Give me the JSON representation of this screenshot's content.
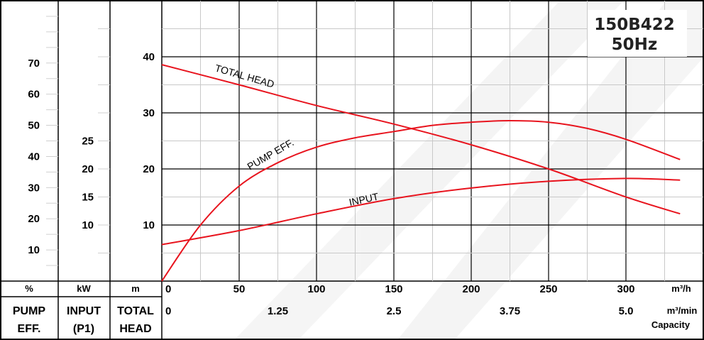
{
  "model": {
    "line1": "150B422",
    "line2": "50Hz"
  },
  "columns": {
    "eff": {
      "unit": "%",
      "label_line1": "PUMP",
      "label_line2": "EFF."
    },
    "input": {
      "unit": "kW",
      "label_line1": "INPUT",
      "label_line2": "(P1)"
    },
    "head": {
      "unit": "m",
      "label_line1": "TOTAL",
      "label_line2": "HEAD"
    }
  },
  "x_units": {
    "m3h": "m³/h",
    "m3min": "m³/min",
    "capacity": "Capacity"
  },
  "chart_data": {
    "type": "line",
    "title": "",
    "x": {
      "label": "Capacity",
      "unit": "m³/h",
      "range": [
        0,
        350
      ],
      "ticks": [
        "0",
        "50",
        "100",
        "150",
        "200",
        "250",
        "300"
      ],
      "secondary_unit": "m³/min",
      "secondary_ticks": [
        {
          "value": 0,
          "label": "0"
        },
        {
          "value": 75,
          "label": "1.25"
        },
        {
          "value": 150,
          "label": "2.5"
        },
        {
          "value": 225,
          "label": "3.75"
        },
        {
          "value": 300,
          "label": "5.0"
        }
      ]
    },
    "axes": {
      "head": {
        "unit": "m",
        "range": [
          0,
          50
        ],
        "ticks": [
          "10",
          "20",
          "30",
          "40"
        ]
      },
      "eff": {
        "unit": "%",
        "range": [
          0,
          90
        ],
        "ticks": [
          "10",
          "20",
          "30",
          "40",
          "50",
          "60",
          "70"
        ]
      },
      "input": {
        "unit": "kW",
        "range": [
          0,
          50
        ],
        "ticks": [
          "10",
          "15",
          "20",
          "25"
        ]
      }
    },
    "grid": true,
    "series": [
      {
        "name": "TOTAL HEAD",
        "axis": "head",
        "x": [
          0,
          50,
          100,
          150,
          200,
          250,
          300,
          335
        ],
        "y": [
          38.6,
          35,
          31.3,
          28,
          24.3,
          20,
          15,
          12
        ]
      },
      {
        "name": "PUMP EFF.",
        "axis": "eff",
        "x": [
          0,
          25,
          50,
          75,
          100,
          125,
          150,
          175,
          200,
          225,
          250,
          275,
          300,
          335
        ],
        "y": [
          0,
          18,
          30.5,
          38,
          43,
          46,
          48,
          50,
          51,
          51.5,
          51,
          49,
          45.5,
          39
        ]
      },
      {
        "name": "INPUT",
        "axis": "input",
        "x": [
          0,
          50,
          100,
          150,
          200,
          250,
          300,
          335
        ],
        "y": [
          6.5,
          9,
          12,
          14.7,
          16.6,
          17.8,
          18.3,
          18
        ]
      }
    ]
  }
}
